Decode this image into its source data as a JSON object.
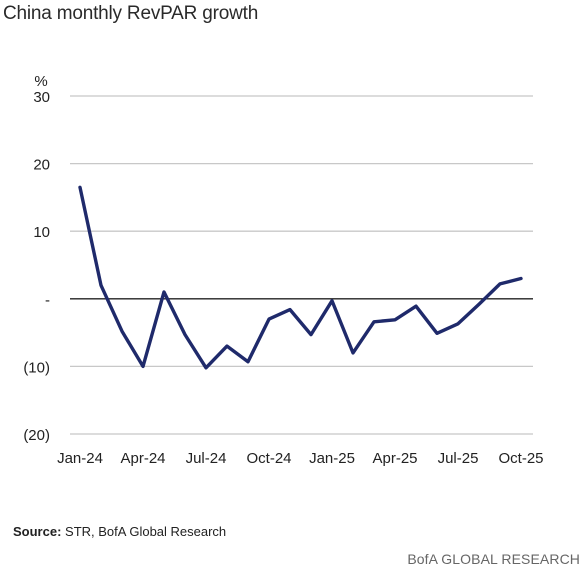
{
  "title": "China monthly RevPAR growth",
  "source_label": "Source:",
  "source_text": "STR, BofA Global Research",
  "brand": "BofA GLOBAL RESEARCH",
  "colors": {
    "line": "#1f2a6b",
    "grid": "#c8c8c8",
    "zero_line": "#222222"
  },
  "chart_data": {
    "type": "line",
    "unit_label": "%",
    "ylim": [
      -20,
      30
    ],
    "y_ticks": [
      {
        "value": 30,
        "label": "30"
      },
      {
        "value": 20,
        "label": "20"
      },
      {
        "value": 10,
        "label": "10"
      },
      {
        "value": 0,
        "label": "-"
      },
      {
        "value": -10,
        "label": "(10)"
      },
      {
        "value": -20,
        "label": "(20)"
      }
    ],
    "x_ticks": [
      {
        "date": "2024-01",
        "label": "Jan-24"
      },
      {
        "date": "2024-04",
        "label": "Apr-24"
      },
      {
        "date": "2024-07",
        "label": "Jul-24"
      },
      {
        "date": "2024-10",
        "label": "Oct-24"
      },
      {
        "date": "2025-01",
        "label": "Jan-25"
      },
      {
        "date": "2025-04",
        "label": "Apr-25"
      },
      {
        "date": "2025-07",
        "label": "Jul-25"
      },
      {
        "date": "2025-10",
        "label": "Oct-25"
      }
    ],
    "grid": true,
    "x": [
      "2024-01",
      "2024-02",
      "2024-03",
      "2024-04",
      "2024-05",
      "2024-06",
      "2024-07",
      "2024-08",
      "2024-09",
      "2024-10",
      "2024-11",
      "2024-12",
      "2025-01",
      "2025-02",
      "2025-03",
      "2025-04",
      "2025-05",
      "2025-06",
      "2025-07",
      "2025-08",
      "2025-09",
      "2025-10"
    ],
    "values": [
      16.5,
      2.0,
      -4.8,
      -10.0,
      1.0,
      -5.3,
      -10.2,
      -7.0,
      -9.3,
      -3.0,
      -1.6,
      -5.3,
      -0.3,
      -8.0,
      -3.4,
      -3.1,
      -1.1,
      -5.1,
      -3.7,
      -0.8,
      2.2,
      3.0
    ]
  }
}
